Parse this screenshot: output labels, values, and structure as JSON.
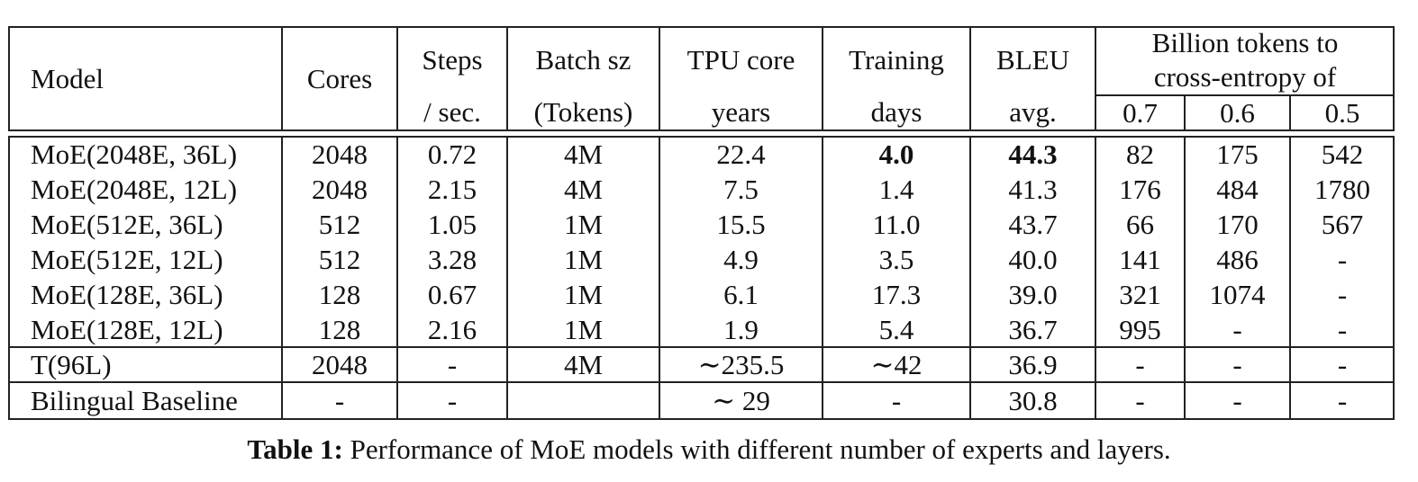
{
  "table": {
    "headers": {
      "model": "Model",
      "cores": "Cores",
      "steps_line1": "Steps",
      "steps_line2": "/ sec.",
      "batch_line1": "Batch sz",
      "batch_line2": "(Tokens)",
      "tpu_line1": "TPU core",
      "tpu_line2": "years",
      "training_line1": "Training",
      "training_line2": "days",
      "bleu_line1": "BLEU",
      "bleu_line2": "avg.",
      "billion_line1": "Billion tokens to",
      "billion_line2": "cross-entropy of",
      "ce_07": "0.7",
      "ce_06": "0.6",
      "ce_05": "0.5"
    },
    "rows": [
      {
        "model": "MoE(2048E, 36L)",
        "cores": "2048",
        "steps": "0.72",
        "batch": "4M",
        "tpu": "22.4",
        "days": "4.0",
        "bleu": "44.3",
        "ce07": "82",
        "ce06": "175",
        "ce05": "542"
      },
      {
        "model": "MoE(2048E, 12L)",
        "cores": "2048",
        "steps": "2.15",
        "batch": "4M",
        "tpu": "7.5",
        "days": "1.4",
        "bleu": "41.3",
        "ce07": "176",
        "ce06": "484",
        "ce05": "1780"
      },
      {
        "model": "MoE(512E, 36L)",
        "cores": "512",
        "steps": "1.05",
        "batch": "1M",
        "tpu": "15.5",
        "days": "11.0",
        "bleu": "43.7",
        "ce07": "66",
        "ce06": "170",
        "ce05": "567"
      },
      {
        "model": "MoE(512E, 12L)",
        "cores": "512",
        "steps": "3.28",
        "batch": "1M",
        "tpu": "4.9",
        "days": "3.5",
        "bleu": "40.0",
        "ce07": "141",
        "ce06": "486",
        "ce05": "-"
      },
      {
        "model": "MoE(128E, 36L)",
        "cores": "128",
        "steps": "0.67",
        "batch": "1M",
        "tpu": "6.1",
        "days": "17.3",
        "bleu": "39.0",
        "ce07": "321",
        "ce06": "1074",
        "ce05": "-"
      },
      {
        "model": "MoE(128E, 12L)",
        "cores": "128",
        "steps": "2.16",
        "batch": "1M",
        "tpu": "1.9",
        "days": "5.4",
        "bleu": "36.7",
        "ce07": "995",
        "ce06": "-",
        "ce05": "-"
      },
      {
        "model": "T(96L)",
        "cores": "2048",
        "steps": "-",
        "batch": "4M",
        "tpu": "∼235.5",
        "days": "∼42",
        "bleu": "36.9",
        "ce07": "-",
        "ce06": "-",
        "ce05": "-"
      },
      {
        "model": "Bilingual Baseline",
        "cores": "-",
        "steps": "-",
        "batch": "",
        "tpu": "∼ 29",
        "days": "-",
        "bleu": "30.8",
        "ce07": "-",
        "ce06": "-",
        "ce05": "-"
      }
    ],
    "bold_cells": [
      "rows.0.days",
      "rows.0.bleu"
    ]
  },
  "caption": {
    "label": "Table 1:",
    "text": " Performance of MoE models with different number of experts and layers."
  }
}
